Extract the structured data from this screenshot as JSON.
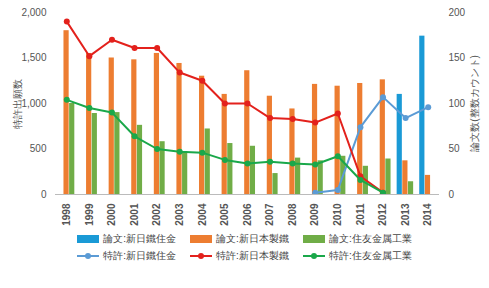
{
  "chart_data": {
    "type": "bar",
    "categories": [
      "1998",
      "1999",
      "2000",
      "2001",
      "2002",
      "2003",
      "2004",
      "2005",
      "2006",
      "2007",
      "2008",
      "2009",
      "2010",
      "2011",
      "2012",
      "2013",
      "2014"
    ],
    "y_label": "特許出願数",
    "y2_label": "論文数(整数カウント)",
    "ylim": [
      0,
      2000
    ],
    "yticks": [
      0,
      500,
      1000,
      1500,
      2000
    ],
    "y2lim": [
      0,
      200
    ],
    "y2ticks": [
      0,
      50,
      100,
      150,
      200
    ],
    "grid": false,
    "legend": "bottom",
    "series": [
      {
        "name": "論文:新日鐵住金",
        "type": "bar",
        "axis": "y2",
        "color": "#1a9ad6",
        "values": [
          null,
          null,
          null,
          null,
          null,
          null,
          null,
          null,
          null,
          null,
          null,
          null,
          null,
          null,
          null,
          110,
          174
        ]
      },
      {
        "name": "論文:新日本製鐵",
        "type": "bar",
        "axis": "y2",
        "color": "#ed7d31",
        "values": [
          180,
          155,
          150,
          148,
          155,
          144,
          130,
          110,
          136,
          108,
          94,
          121,
          119,
          122,
          126,
          37,
          21
        ]
      },
      {
        "name": "論文:住友金属工業",
        "type": "bar",
        "axis": "y2",
        "color": "#70ad47",
        "values": [
          100,
          89,
          90,
          76,
          58,
          47,
          72,
          56,
          53,
          23,
          40,
          37,
          42,
          31,
          39,
          14,
          null
        ]
      },
      {
        "name": "特許:新日鐵住金",
        "type": "line",
        "marker": "circle",
        "color": "#5b9bd5",
        "values": [
          null,
          null,
          null,
          null,
          null,
          null,
          null,
          null,
          null,
          null,
          null,
          20,
          50,
          740,
          1070,
          840,
          960
        ]
      },
      {
        "name": "特許:新日本製鐵",
        "type": "line",
        "marker": "circle",
        "color": "#e3211c",
        "values": [
          1900,
          1520,
          1700,
          1610,
          1610,
          1340,
          1250,
          1000,
          1000,
          840,
          830,
          790,
          890,
          200,
          20,
          null,
          null
        ]
      },
      {
        "name": "特許:住友金属工業",
        "type": "line",
        "marker": "circle",
        "color": "#1aa84a",
        "values": [
          1040,
          950,
          900,
          640,
          500,
          470,
          460,
          380,
          340,
          360,
          340,
          330,
          420,
          160,
          20,
          null,
          null
        ]
      }
    ]
  }
}
